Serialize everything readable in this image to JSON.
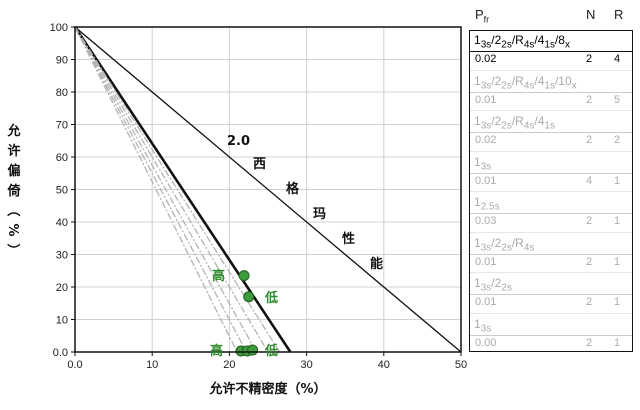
{
  "chart_data": {
    "type": "line",
    "xlabel": "允许不精密度（%）",
    "ylabel": "允许偏倚（%）",
    "xlim": [
      0,
      50
    ],
    "ylim": [
      0,
      100
    ],
    "xticks": [
      0,
      10,
      20,
      30,
      40,
      50
    ],
    "yticks": [
      0,
      10,
      20,
      30,
      40,
      50,
      60,
      70,
      80,
      90,
      100
    ],
    "xtick_labels": [
      "0.0",
      "10",
      "20",
      "30",
      "40",
      "50"
    ],
    "ytick_labels": [
      "0.0",
      "10",
      "20",
      "30",
      "40",
      "50",
      "60",
      "70",
      "80",
      "90",
      "100"
    ],
    "grid": true,
    "series": [
      {
        "x": [
          0,
          50
        ],
        "y": [
          100,
          0
        ],
        "style": "sigma"
      },
      {
        "x": [
          0,
          27.9
        ],
        "y": [
          100,
          0
        ],
        "style": "bold"
      },
      {
        "x": [
          0,
          26.5
        ],
        "y": [
          100,
          0
        ],
        "style": "gray"
      },
      {
        "x": [
          0,
          25.0
        ],
        "y": [
          100,
          0
        ],
        "style": "gray"
      },
      {
        "x": [
          0,
          23.5
        ],
        "y": [
          100,
          0
        ],
        "style": "gray"
      },
      {
        "x": [
          0,
          22.2
        ],
        "y": [
          100,
          0
        ],
        "style": "gray"
      },
      {
        "x": [
          0,
          21.0
        ],
        "y": [
          100,
          0
        ],
        "style": "gray"
      }
    ],
    "points": [
      {
        "x": 21.9,
        "y": 23.5
      },
      {
        "x": 22.5,
        "y": 17.0
      },
      {
        "x": 21.5,
        "y": 0.3
      },
      {
        "x": 22.3,
        "y": 0.3
      },
      {
        "x": 23.0,
        "y": 0.6
      }
    ],
    "annotations": {
      "sigma_value": "2.0",
      "sigma_chars": [
        "西",
        "格",
        "玛",
        "性",
        "能"
      ],
      "high_upper": "高",
      "low_upper": "低",
      "high_lower": "高",
      "low_lower": "低"
    },
    "colors": {
      "point": "#3d9a3d",
      "annotation": "#2e8b2e",
      "gray_line": "#b3b3b3"
    }
  },
  "rules_table": {
    "header": {
      "p": "P",
      "p_sub": "fr",
      "n": "N",
      "r": "R"
    },
    "rows": [
      {
        "name_html": "1<sub>3s</sub>/2<sub>2s</sub>/R<sub>4s</sub>/4<sub>1s</sub>/8<sub>x</sub>",
        "p": "0.02",
        "n": "2",
        "r": "4",
        "active": true
      },
      {
        "name_html": "1<sub>3s</sub>/2<sub>2s</sub>/R<sub>4s</sub>/4<sub>1s</sub>/10<sub>x</sub>",
        "p": "0.01",
        "n": "2",
        "r": "5",
        "active": false
      },
      {
        "name_html": "1<sub>3s</sub>/2<sub>2s</sub>/R<sub>4s</sub>/4<sub>1s</sub>",
        "p": "0.02",
        "n": "2",
        "r": "2",
        "active": false
      },
      {
        "name_html": "1<sub>3s</sub>",
        "p": "0.01",
        "n": "4",
        "r": "1",
        "active": false
      },
      {
        "name_html": "1<sub>2.5s</sub>",
        "p": "0.03",
        "n": "2",
        "r": "1",
        "active": false
      },
      {
        "name_html": "1<sub>3s</sub>/2<sub>2s</sub>/R<sub>4s</sub>",
        "p": "0.01",
        "n": "2",
        "r": "1",
        "active": false
      },
      {
        "name_html": "1<sub>3s</sub>/2<sub>2s</sub>",
        "p": "0.01",
        "n": "2",
        "r": "1",
        "active": false
      },
      {
        "name_html": "1<sub>3s</sub>",
        "p": "0.00",
        "n": "2",
        "r": "1",
        "active": false
      }
    ]
  }
}
